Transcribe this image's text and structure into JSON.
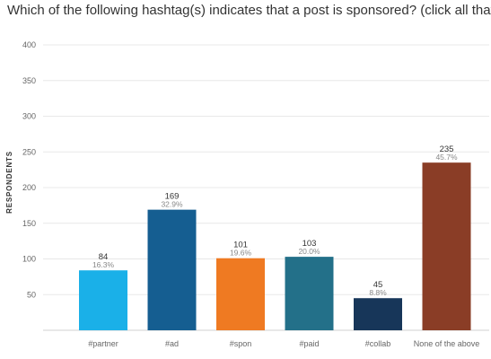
{
  "chart_data": {
    "type": "bar",
    "title": "Which of the following hashtag(s) indicates that a post is sponsored? (click all that apply)",
    "ylabel": "RESPONDENTS",
    "xlabel": "",
    "ylim": [
      0,
      400
    ],
    "yticks": [
      "50",
      "100",
      "150",
      "200",
      "250",
      "300",
      "350",
      "400"
    ],
    "categories": [
      "#partner",
      "#ad",
      "#spon",
      "#paid",
      "#collab",
      "None of the above"
    ],
    "values": [
      84,
      169,
      101,
      103,
      45,
      235
    ],
    "value_labels": [
      "84",
      "169",
      "101",
      "103",
      "45",
      "235"
    ],
    "percent_labels": [
      "16.3%",
      "32.9%",
      "19.6%",
      "20.0%",
      "8.8%",
      "45.7%"
    ],
    "colors": [
      "#1ab0e8",
      "#155e91",
      "#ef7a22",
      "#237089",
      "#173659",
      "#8a3d26"
    ],
    "grid": true,
    "legend": "none"
  }
}
